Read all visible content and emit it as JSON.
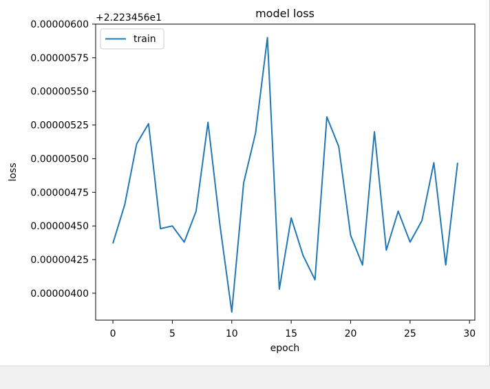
{
  "chart_data": {
    "type": "line",
    "title": "model loss",
    "xlabel": "epoch",
    "ylabel": "loss",
    "offset_label": "+2.223456e1",
    "xlim": [
      -1.45,
      30.45
    ],
    "ylim": [
      3.8e-06,
      6e-06
    ],
    "xticks": [
      0,
      5,
      10,
      15,
      20,
      25,
      30
    ],
    "xtick_labels": [
      "0",
      "5",
      "10",
      "15",
      "20",
      "25",
      "30"
    ],
    "yticks": [
      4e-06,
      4.25e-06,
      4.5e-06,
      4.75e-06,
      5e-06,
      5.25e-06,
      5.5e-06,
      5.75e-06,
      6e-06
    ],
    "ytick_labels": [
      "0.00000400",
      "0.00000425",
      "0.00000450",
      "0.00000475",
      "0.00000500",
      "0.00000525",
      "0.00000550",
      "0.00000575",
      "0.00000600"
    ],
    "legend_position": "upper-left",
    "grid": false,
    "series": [
      {
        "name": "train",
        "color": "#1f77b4",
        "x": [
          0,
          1,
          2,
          3,
          4,
          5,
          6,
          7,
          8,
          9,
          10,
          11,
          12,
          13,
          14,
          15,
          16,
          17,
          18,
          19,
          20,
          21,
          22,
          23,
          24,
          25,
          26,
          27,
          28,
          29
        ],
        "y": [
          4.37e-06,
          4.66e-06,
          5.11e-06,
          5.26e-06,
          4.48e-06,
          4.5e-06,
          4.38e-06,
          4.61e-06,
          5.27e-06,
          4.51e-06,
          3.86e-06,
          4.82e-06,
          5.19e-06,
          5.9e-06,
          4.03e-06,
          4.56e-06,
          4.28e-06,
          4.1e-06,
          5.31e-06,
          5.09e-06,
          4.43e-06,
          4.21e-06,
          5.2e-06,
          4.32e-06,
          4.61e-06,
          4.38e-06,
          4.54e-06,
          4.97e-06,
          4.21e-06,
          4.97e-06
        ]
      }
    ]
  }
}
